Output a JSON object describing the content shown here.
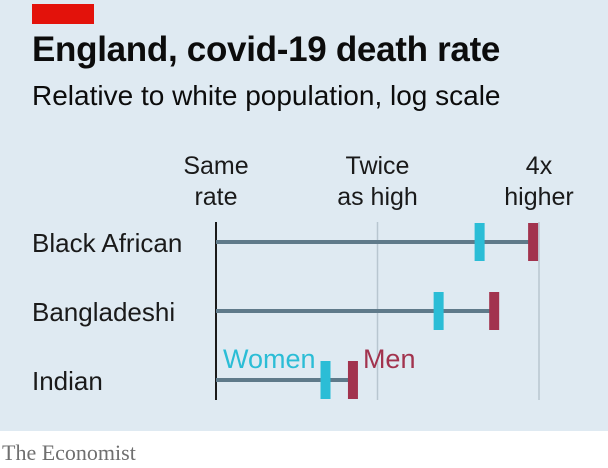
{
  "header": {
    "title": "England, covid-19 death rate",
    "subtitle": "Relative to white population, log scale"
  },
  "footer": {
    "source": "The Economist"
  },
  "colors": {
    "women": "#2bbdd6",
    "men": "#a2334e",
    "bar": "#5f7a8a",
    "grid": "#b8c6d0",
    "accent": "#e3120b"
  },
  "chart_data": {
    "type": "dot",
    "x_scale": "log",
    "xlim": [
      1,
      4
    ],
    "ticks": [
      {
        "value": 1,
        "line1": "Same",
        "line2": "rate"
      },
      {
        "value": 2,
        "line1": "Twice",
        "line2": "as high"
      },
      {
        "value": 4,
        "line1": "4x",
        "line2": "higher"
      }
    ],
    "categories": [
      "Black African",
      "Bangladeshi",
      "Indian"
    ],
    "series": [
      {
        "name": "Women",
        "values": [
          3.1,
          2.6,
          1.6
        ]
      },
      {
        "name": "Men",
        "values": [
          3.9,
          3.3,
          1.8
        ]
      }
    ],
    "annotations": {
      "women": "Women",
      "men": "Men"
    }
  }
}
